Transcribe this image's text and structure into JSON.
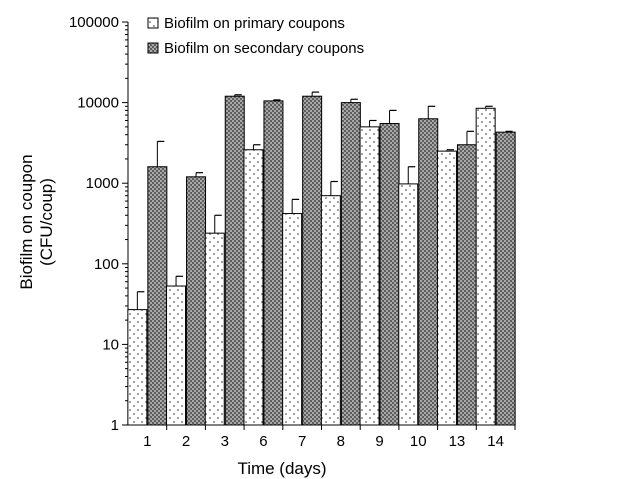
{
  "chart_data": {
    "type": "bar",
    "xlabel": "Time (days)",
    "ylabel_line1": "Biofilm on coupon",
    "ylabel_line2": "(CFU/coup)",
    "y_scale": "log",
    "ylim": [
      1,
      100000
    ],
    "y_ticks": [
      "1",
      "10",
      "100",
      "1000",
      "10000",
      "100000"
    ],
    "categories": [
      "1",
      "2",
      "3",
      "6",
      "7",
      "8",
      "9",
      "10",
      "13",
      "14"
    ],
    "legend_position": "top-left",
    "grid": false,
    "series": [
      {
        "name": "Biofilm on primary coupons",
        "pattern": "dotted",
        "values": [
          27,
          53,
          240,
          2600,
          420,
          700,
          5000,
          980,
          2500,
          8500
        ],
        "errors": [
          45,
          70,
          400,
          3000,
          630,
          1050,
          6000,
          1600,
          2600,
          9000
        ]
      },
      {
        "name": "Biofilm on secondary coupons",
        "pattern": "crosshatch",
        "values": [
          1600,
          1200,
          12000,
          10500,
          12000,
          10000,
          5500,
          6300,
          3000,
          4300
        ],
        "errors": [
          3300,
          1350,
          12500,
          10800,
          13500,
          11000,
          8000,
          9000,
          4400,
          4400
        ]
      }
    ]
  }
}
